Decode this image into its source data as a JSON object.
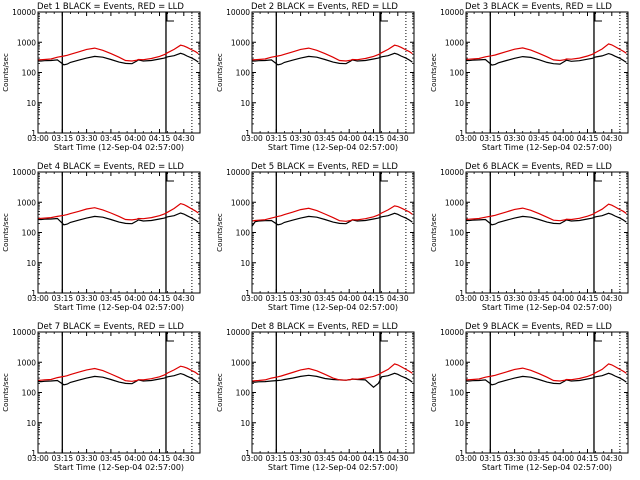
{
  "chart_data": {
    "type": "line",
    "layout": "3x3 grid",
    "shared": {
      "title_suffix": "BLACK = Events, RED = LLD",
      "xlabel": "Start Time (12-Sep-04 02:57:00)",
      "ylabel": "Counts/sec",
      "yscale": "log",
      "ylim": [
        1,
        10000
      ],
      "ytick_values": [
        1,
        10,
        100,
        1000,
        10000
      ],
      "ytick_labels": [
        "1",
        "10",
        "100",
        "1000",
        "10000"
      ],
      "xlim_minutes": [
        0,
        100
      ],
      "xtick_values_minutes": [
        0,
        15,
        30,
        45,
        60,
        75,
        90
      ],
      "xtick_labels": [
        "03:00",
        "03:15",
        "03:30",
        "03:45",
        "04:00",
        "04:15",
        "04:30"
      ],
      "vertical_lines_minutes": [
        15,
        79
      ],
      "dotted_line_minutes": 95,
      "series_colors": {
        "events": "#000000",
        "lld": "#dd0000"
      }
    },
    "x_minutes": [
      0,
      2,
      4,
      8,
      12,
      16,
      18,
      20,
      25,
      30,
      35,
      40,
      45,
      50,
      54,
      58,
      61,
      62,
      65,
      70,
      75,
      78,
      80,
      84,
      88,
      90,
      92,
      95,
      97,
      99
    ],
    "panels": [
      {
        "title": "Det 1",
        "series": [
          {
            "name": "Events",
            "values": [
              240,
              240,
              245,
              250,
              260,
              180,
              190,
              215,
              255,
              300,
              340,
              320,
              270,
              220,
              200,
              195,
              240,
              260,
              240,
              250,
              280,
              300,
              330,
              360,
              430,
              400,
              350,
              300,
              260,
              220
            ]
          },
          {
            "name": "LLD",
            "values": [
              260,
              265,
              270,
              280,
              320,
              350,
              370,
              400,
              480,
              580,
              640,
              540,
              420,
              320,
              250,
              240,
              255,
              270,
              265,
              290,
              340,
              390,
              450,
              580,
              800,
              760,
              680,
              560,
              500,
              420
            ]
          }
        ]
      },
      {
        "title": "Det 2",
        "series": [
          {
            "name": "Events",
            "values": [
              240,
              240,
              245,
              250,
              260,
              180,
              190,
              215,
              255,
              300,
              340,
              320,
              270,
              220,
              200,
              195,
              240,
              260,
              240,
              250,
              280,
              300,
              330,
              360,
              430,
              400,
              350,
              300,
              260,
              220
            ]
          },
          {
            "name": "LLD",
            "values": [
              260,
              265,
              270,
              280,
              320,
              350,
              370,
              400,
              480,
              580,
              640,
              540,
              420,
              320,
              250,
              240,
              255,
              270,
              265,
              290,
              340,
              390,
              450,
              580,
              800,
              760,
              680,
              560,
              500,
              420
            ]
          }
        ]
      },
      {
        "title": "Det 3",
        "series": [
          {
            "name": "Events",
            "values": [
              250,
              250,
              255,
              260,
              270,
              175,
              185,
              210,
              250,
              295,
              335,
              315,
              265,
              215,
              195,
              190,
              235,
              255,
              235,
              245,
              275,
              295,
              325,
              355,
              420,
              390,
              345,
              295,
              255,
              215
            ]
          },
          {
            "name": "LLD",
            "values": [
              270,
              275,
              280,
              290,
              330,
              360,
              380,
              410,
              490,
              590,
              650,
              550,
              430,
              330,
              260,
              250,
              265,
              280,
              275,
              300,
              350,
              400,
              460,
              600,
              880,
              820,
              720,
              580,
              510,
              430
            ]
          }
        ]
      },
      {
        "title": "Det 4",
        "series": [
          {
            "name": "Events",
            "values": [
              270,
              270,
              275,
              280,
              290,
              180,
              190,
              215,
              255,
              300,
              340,
              320,
              270,
              220,
              200,
              195,
              240,
              260,
              240,
              250,
              280,
              300,
              330,
              360,
              440,
              410,
              360,
              300,
              260,
              220
            ]
          },
          {
            "name": "LLD",
            "values": [
              290,
              295,
              300,
              310,
              340,
              370,
              390,
              420,
              500,
              600,
              660,
              560,
              440,
              340,
              270,
              260,
              275,
              290,
              285,
              310,
              360,
              410,
              470,
              620,
              900,
              840,
              740,
              600,
              520,
              440
            ]
          }
        ]
      },
      {
        "title": "Det 5",
        "series": [
          {
            "name": "Events",
            "values": [
              160,
              230,
              240,
              245,
              250,
              180,
              190,
              215,
              255,
              300,
              340,
              320,
              270,
              220,
              200,
              195,
              240,
              260,
              240,
              250,
              280,
              300,
              330,
              360,
              430,
              400,
              350,
              300,
              260,
              220
            ]
          },
          {
            "name": "LLD",
            "values": [
              240,
              250,
              255,
              265,
              300,
              340,
              360,
              390,
              470,
              570,
              630,
              530,
              410,
              310,
              245,
              235,
              250,
              265,
              260,
              285,
              330,
              380,
              440,
              560,
              760,
              720,
              650,
              540,
              480,
              400
            ]
          }
        ]
      },
      {
        "title": "Det 6",
        "series": [
          {
            "name": "Events",
            "values": [
              250,
              250,
              255,
              260,
              270,
              180,
              190,
              215,
              255,
              300,
              340,
              320,
              270,
              220,
              200,
              195,
              240,
              260,
              240,
              250,
              280,
              300,
              330,
              360,
              430,
              400,
              350,
              300,
              260,
              220
            ]
          },
          {
            "name": "LLD",
            "values": [
              270,
              275,
              280,
              290,
              320,
              350,
              370,
              400,
              480,
              580,
              640,
              540,
              420,
              320,
              255,
              245,
              260,
              275,
              270,
              295,
              345,
              395,
              455,
              590,
              860,
              800,
              700,
              570,
              505,
              425
            ]
          }
        ]
      },
      {
        "title": "Det 7",
        "series": [
          {
            "name": "Events",
            "values": [
              230,
              230,
              235,
              240,
              250,
              180,
              190,
              215,
              255,
              300,
              340,
              320,
              270,
              220,
              200,
              195,
              240,
              260,
              240,
              250,
              280,
              300,
              330,
              360,
              420,
              390,
              345,
              295,
              255,
              215
            ]
          },
          {
            "name": "LLD",
            "values": [
              250,
              255,
              260,
              270,
              310,
              340,
              360,
              390,
              470,
              560,
              620,
              530,
              410,
              310,
              245,
              235,
              250,
              265,
              260,
              285,
              330,
              380,
              440,
              560,
              740,
              700,
              640,
              530,
              470,
              390
            ]
          }
        ]
      },
      {
        "title": "Det 8",
        "series": [
          {
            "name": "Events",
            "values": [
              220,
              220,
              225,
              230,
              240,
              250,
              255,
              270,
              300,
              340,
              370,
              340,
              290,
              270,
              260,
              255,
              270,
              280,
              270,
              260,
              150,
              200,
              330,
              360,
              430,
              400,
              350,
              300,
              260,
              220
            ]
          },
          {
            "name": "LLD",
            "values": [
              240,
              245,
              250,
              260,
              300,
              330,
              350,
              380,
              460,
              560,
              620,
              520,
              400,
              300,
              260,
              255,
              270,
              280,
              275,
              300,
              340,
              390,
              450,
              580,
              880,
              820,
              720,
              580,
              510,
              430
            ]
          }
        ]
      },
      {
        "title": "Det 9",
        "series": [
          {
            "name": "Events",
            "values": [
              240,
              240,
              245,
              250,
              260,
              180,
              190,
              215,
              255,
              300,
              340,
              320,
              270,
              220,
              200,
              195,
              240,
              260,
              240,
              250,
              280,
              300,
              330,
              360,
              430,
              400,
              350,
              300,
              260,
              220
            ]
          },
          {
            "name": "LLD",
            "values": [
              260,
              265,
              270,
              280,
              320,
              350,
              370,
              400,
              480,
              580,
              640,
              540,
              420,
              320,
              250,
              240,
              255,
              270,
              265,
              290,
              340,
              390,
              450,
              580,
              880,
              820,
              720,
              580,
              510,
              430
            ]
          }
        ]
      }
    ]
  }
}
